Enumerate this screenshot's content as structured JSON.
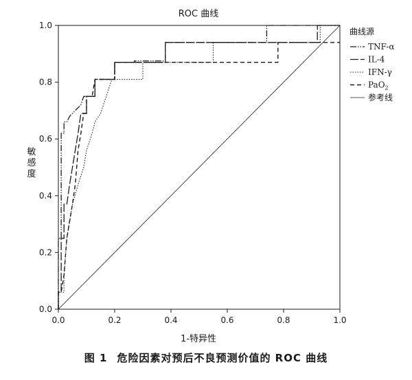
{
  "caption": {
    "label": "图 1",
    "text": "危险因素对预后不良预测价值的 ROC 曲线"
  },
  "chart_data": {
    "type": "line",
    "title": "ROC 曲线",
    "xlabel": "1-特异性",
    "ylabel": "敏感度",
    "xlim": [
      0,
      1
    ],
    "ylim": [
      0,
      1
    ],
    "x_ticks": [
      "0.0",
      "0.2",
      "0.4",
      "0.6",
      "0.8",
      "1.0"
    ],
    "y_ticks": [
      "0.0",
      "0.2",
      "0.4",
      "0.6",
      "0.8",
      "1.0"
    ],
    "grid": false,
    "legend_title": "曲线源",
    "legend_position": "right",
    "series": [
      {
        "name": "TNF-α",
        "style": "dashdotdot",
        "points": [
          [
            0,
            0
          ],
          [
            0,
            0.25
          ],
          [
            0.01,
            0.25
          ],
          [
            0.01,
            0.62
          ],
          [
            0.02,
            0.62
          ],
          [
            0.02,
            0.66
          ],
          [
            0.03,
            0.66
          ],
          [
            0.04,
            0.68
          ],
          [
            0.06,
            0.7
          ],
          [
            0.08,
            0.72
          ],
          [
            0.09,
            0.75
          ],
          [
            0.13,
            0.75
          ],
          [
            0.13,
            0.81
          ],
          [
            0.2,
            0.81
          ],
          [
            0.2,
            0.87
          ],
          [
            0.27,
            0.87
          ],
          [
            0.27,
            0.875
          ],
          [
            0.38,
            0.875
          ],
          [
            0.38,
            0.94
          ],
          [
            0.74,
            0.94
          ],
          [
            0.74,
            1
          ],
          [
            1,
            1
          ]
        ]
      },
      {
        "name": "IL-4",
        "style": "longdash",
        "points": [
          [
            0,
            0
          ],
          [
            0,
            0.06
          ],
          [
            0.01,
            0.06
          ],
          [
            0.01,
            0.25
          ],
          [
            0.02,
            0.25
          ],
          [
            0.02,
            0.37
          ],
          [
            0.03,
            0.37
          ],
          [
            0.04,
            0.44
          ],
          [
            0.05,
            0.5
          ],
          [
            0.06,
            0.56
          ],
          [
            0.07,
            0.62
          ],
          [
            0.08,
            0.69
          ],
          [
            0.1,
            0.69
          ],
          [
            0.1,
            0.75
          ],
          [
            0.13,
            0.75
          ],
          [
            0.13,
            0.81
          ],
          [
            0.2,
            0.81
          ],
          [
            0.2,
            0.87
          ],
          [
            0.38,
            0.87
          ],
          [
            0.38,
            0.94
          ],
          [
            0.92,
            0.94
          ],
          [
            0.92,
            1
          ],
          [
            1,
            1
          ]
        ]
      },
      {
        "name": "IFN-γ",
        "style": "dotted",
        "points": [
          [
            0,
            0
          ],
          [
            0,
            0.06
          ],
          [
            0.02,
            0.06
          ],
          [
            0.02,
            0.12
          ],
          [
            0.03,
            0.25
          ],
          [
            0.05,
            0.37
          ],
          [
            0.07,
            0.44
          ],
          [
            0.09,
            0.5
          ],
          [
            0.1,
            0.56
          ],
          [
            0.12,
            0.62
          ],
          [
            0.13,
            0.66
          ],
          [
            0.15,
            0.69
          ],
          [
            0.17,
            0.75
          ],
          [
            0.19,
            0.81
          ],
          [
            0.3,
            0.81
          ],
          [
            0.3,
            0.87
          ],
          [
            0.55,
            0.87
          ],
          [
            0.55,
            0.94
          ],
          [
            0.93,
            0.94
          ],
          [
            0.93,
            1
          ],
          [
            1,
            1
          ]
        ]
      },
      {
        "name": "PaO2",
        "name_main": "PaO",
        "name_sub": "2",
        "style": "dash",
        "points": [
          [
            0,
            0
          ],
          [
            0,
            0.06
          ],
          [
            0.01,
            0.06
          ],
          [
            0.02,
            0.12
          ],
          [
            0.03,
            0.25
          ],
          [
            0.05,
            0.37
          ],
          [
            0.06,
            0.44
          ],
          [
            0.07,
            0.56
          ],
          [
            0.08,
            0.62
          ],
          [
            0.09,
            0.69
          ],
          [
            0.1,
            0.69
          ],
          [
            0.1,
            0.75
          ],
          [
            0.12,
            0.75
          ],
          [
            0.13,
            0.81
          ],
          [
            0.15,
            0.81
          ],
          [
            0.2,
            0.81
          ],
          [
            0.2,
            0.87
          ],
          [
            0.38,
            0.87
          ],
          [
            0.78,
            0.87
          ],
          [
            0.78,
            0.94
          ],
          [
            1,
            0.94
          ]
        ]
      },
      {
        "name": "参考线",
        "style": "solid",
        "points": [
          [
            0,
            0
          ],
          [
            1,
            1
          ]
        ]
      }
    ]
  }
}
